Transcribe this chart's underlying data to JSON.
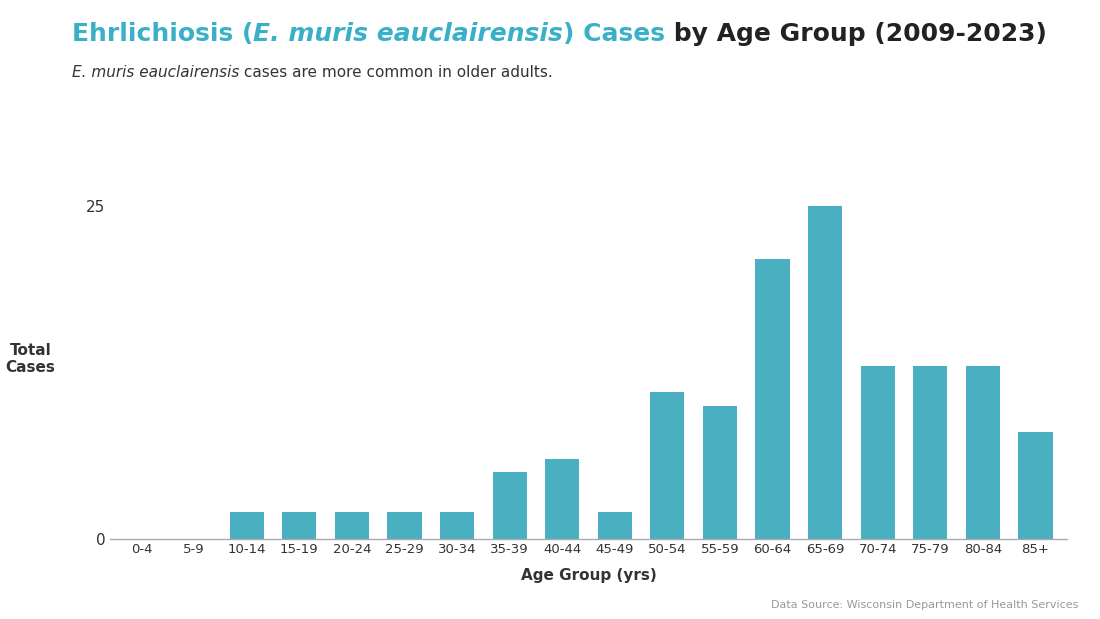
{
  "categories": [
    "0-4",
    "5-9",
    "10-14",
    "15-19",
    "20-24",
    "25-29",
    "30-34",
    "35-39",
    "40-44",
    "45-49",
    "50-54",
    "55-59",
    "60-64",
    "65-69",
    "70-74",
    "75-79",
    "80-84",
    "85+"
  ],
  "values": [
    0,
    0,
    2,
    2,
    2,
    2,
    2,
    5,
    6,
    2,
    11,
    10,
    21,
    25,
    13,
    13,
    13,
    8
  ],
  "bar_color": "#4aafc0",
  "title_parts": [
    {
      "text": "Ehrlichiosis (",
      "bold": true,
      "italic": false,
      "color": "#3ab0c8"
    },
    {
      "text": "E. muris eauclairensis",
      "bold": true,
      "italic": true,
      "color": "#3ab0c8"
    },
    {
      "text": ") Cases",
      "bold": true,
      "italic": false,
      "color": "#3ab0c8"
    },
    {
      "text": " by Age Group (2009-2023)",
      "bold": true,
      "italic": false,
      "color": "#222222"
    }
  ],
  "subtitle_parts": [
    {
      "text": "E. muris eauclairensis",
      "bold": false,
      "italic": true,
      "color": "#333333"
    },
    {
      "text": " cases are more common in older adults.",
      "bold": false,
      "italic": false,
      "color": "#333333"
    }
  ],
  "ylabel": "Total\nCases",
  "xlabel": "Age Group (yrs)",
  "ylim": [
    0,
    27
  ],
  "yticks": [
    0,
    25
  ],
  "ytick_labels": [
    "0",
    "25"
  ],
  "datasource": "Data Source: Wisconsin Department of Health Services",
  "background_color": "#ffffff",
  "title_fontsize": 18,
  "subtitle_fontsize": 11
}
